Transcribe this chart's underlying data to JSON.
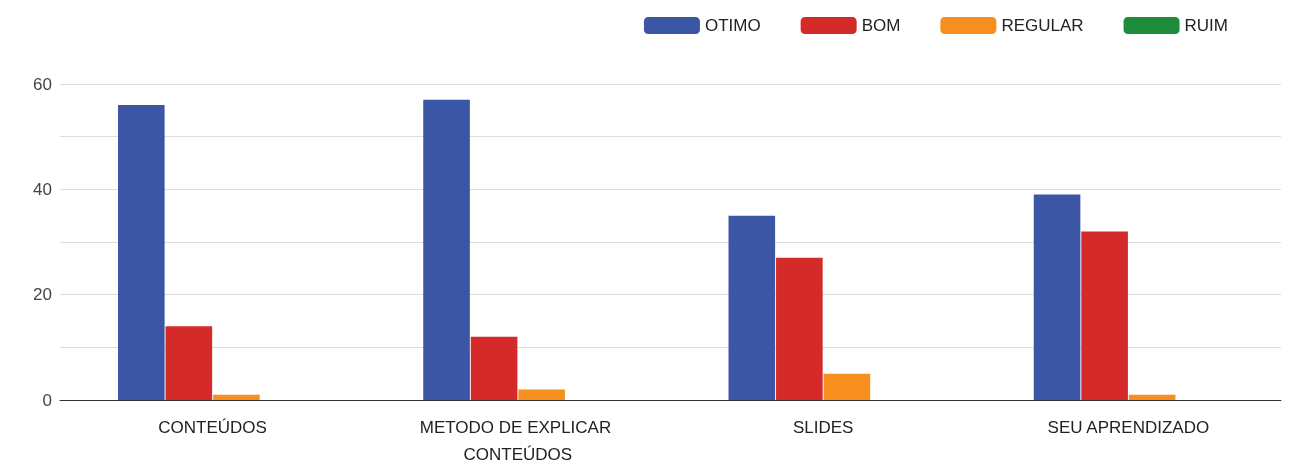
{
  "chart_data": {
    "type": "bar",
    "categories": [
      "CONTEÚDOS",
      "METODO DE EXPLICAR CONTEÚDOS",
      "SLIDES",
      "SEU APRENDIZADO"
    ],
    "series": [
      {
        "name": "OTIMO",
        "color": "#3a56a5",
        "values": [
          56,
          57,
          35,
          39
        ]
      },
      {
        "name": "BOM",
        "color": "#d42a2a",
        "values": [
          14,
          12,
          27,
          32
        ]
      },
      {
        "name": "REGULAR",
        "color": "#f78f1e",
        "values": [
          1,
          2,
          5,
          1
        ]
      },
      {
        "name": "RUIM",
        "color": "#1e8c3a",
        "values": [
          0,
          0,
          0,
          0
        ]
      }
    ],
    "ylim": [
      0,
      60
    ],
    "yticks": [
      0,
      {
        "value": 10,
        "label": null
      },
      20,
      {
        "value": 30,
        "label": null
      },
      40,
      {
        "value": 50,
        "label": null
      },
      60
    ],
    "grid": "y",
    "legend": "top right"
  }
}
